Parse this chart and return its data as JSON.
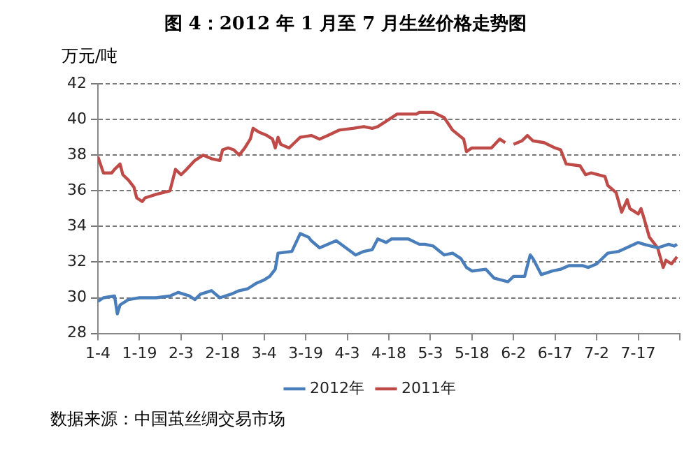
{
  "chart_data": {
    "type": "line",
    "title": "图 4：2012 年 1 月至 7 月生丝价格走势图",
    "ylabel": "万元/吨",
    "annotations": [
      "数据来源：中国茧丝绸交易市场"
    ],
    "xlim": [
      "--01-04",
      "--08-01"
    ],
    "xticks": [
      {
        "value": "--01-04",
        "label": "1-4"
      },
      {
        "value": "--01-19",
        "label": "1-19"
      },
      {
        "value": "--02-03",
        "label": "2-3"
      },
      {
        "value": "--02-18",
        "label": "2-18"
      },
      {
        "value": "--03-04",
        "label": "3-4"
      },
      {
        "value": "--03-19",
        "label": "3-19"
      },
      {
        "value": "--04-03",
        "label": "4-3"
      },
      {
        "value": "--04-18",
        "label": "4-18"
      },
      {
        "value": "--05-03",
        "label": "5-3"
      },
      {
        "value": "--05-18",
        "label": "5-18"
      },
      {
        "value": "--06-02",
        "label": "6-2"
      },
      {
        "value": "--06-17",
        "label": "6-17"
      },
      {
        "value": "--07-02",
        "label": "7-2"
      },
      {
        "value": "--07-17",
        "label": "7-17"
      },
      {
        "value": "--08-01",
        "label": null
      }
    ],
    "ylim": [
      28,
      42
    ],
    "yticks": [
      28,
      30,
      32,
      34,
      36,
      38,
      40,
      42
    ],
    "grid": "y",
    "legend": "bottom",
    "marker": "none",
    "line_style": "solid",
    "series": [
      {
        "name": "2012年",
        "color": "#4a7ebb",
        "x": [
          "--01-04",
          "--01-06",
          "--01-10",
          "--01-11",
          "--01-12",
          "--01-15",
          "--01-19",
          "--01-25",
          "--01-30",
          "--02-02",
          "--02-06",
          "--02-08",
          "--02-10",
          "--02-14",
          "--02-17",
          "--02-21",
          "--02-24",
          "--02-27",
          "--03-01",
          "--03-04",
          "--03-06",
          "--03-08",
          "--03-09",
          "--03-14",
          "--03-17",
          "--03-20",
          "--03-21",
          "--03-24",
          "--03-30",
          "--04-06",
          "--04-09",
          "--04-12",
          "--04-14",
          "--04-17",
          "--04-19",
          "--04-25",
          "--04-29",
          "--05-01",
          "--05-04",
          "--05-08",
          "--05-11",
          "--05-14",
          "--05-16",
          "--05-18",
          "--05-23",
          "--05-26",
          "--05-31",
          "--06-02",
          "--06-06",
          "--06-08",
          "--06-09",
          "--06-12",
          "--06-16",
          "--06-19",
          "--06-22",
          "--06-27",
          "--06-29",
          "--07-02",
          "--07-06",
          "--07-10",
          "--07-17",
          "--07-19",
          "--07-24",
          "--07-28",
          "--07-30",
          "--07-31"
        ],
        "values": [
          29.8,
          30.0,
          30.1,
          29.1,
          29.6,
          29.9,
          30.0,
          30.0,
          30.1,
          30.3,
          30.1,
          29.9,
          30.2,
          30.4,
          30.0,
          30.2,
          30.4,
          30.5,
          30.8,
          31.0,
          31.2,
          31.6,
          32.5,
          32.6,
          33.6,
          33.4,
          33.2,
          32.8,
          33.2,
          32.4,
          32.6,
          32.7,
          33.3,
          33.1,
          33.3,
          33.3,
          33.0,
          33.0,
          32.9,
          32.4,
          32.5,
          32.2,
          31.7,
          31.5,
          31.6,
          31.1,
          30.9,
          31.2,
          31.2,
          32.4,
          32.2,
          31.3,
          31.5,
          31.6,
          31.8,
          31.8,
          31.7,
          31.9,
          32.5,
          32.6,
          33.1,
          33.0,
          32.8,
          33.0,
          32.9,
          33.0
        ]
      },
      {
        "name": "2011年",
        "color": "#be4b48",
        "x": [
          "--01-04",
          "--01-06",
          "--01-09",
          "--01-10",
          "--01-12",
          "--01-13",
          "--01-15",
          "--01-17",
          "--01-18",
          "--01-20",
          "--01-21",
          "--01-25",
          "--01-30",
          "--02-01",
          "--02-03",
          "--02-05",
          "--02-08",
          "--02-11",
          "--02-14",
          "--02-17",
          "--02-18",
          "--02-20",
          "--02-22",
          "--02-24",
          "--02-26",
          "--02-28",
          "--02-29",
          "--03-02",
          "--03-05",
          "--03-07",
          "--03-08",
          "--03-09",
          "--03-10",
          "--03-13",
          "--03-15",
          "--03-17",
          "--03-21",
          "--03-24",
          "--03-27",
          "--03-31",
          "--04-05",
          "--04-09",
          "--04-12",
          "--04-14",
          "--04-18",
          "--04-21",
          "--04-28",
          "--04-29",
          "--05-04",
          "--05-08",
          "--05-11",
          "--05-15",
          "--05-16",
          "--05-18",
          "--05-25",
          "--05-28",
          "--05-30",
          "--05-31",
          "--06-02",
          "--06-05",
          "--06-07",
          "--06-09",
          "--06-13",
          "--06-17",
          "--06-19",
          "--06-21",
          "--06-26",
          "--06-28",
          "--06-30",
          "--07-05",
          "--07-06",
          "--07-09",
          "--07-11",
          "--07-13",
          "--07-14",
          "--07-17",
          "--07-18",
          "--07-19",
          "--07-21",
          "--07-24",
          "--07-26",
          "--07-27",
          "--07-29",
          "--07-30",
          "--07-31"
        ],
        "values": [
          37.9,
          37.0,
          37.0,
          37.2,
          37.5,
          36.9,
          36.6,
          36.2,
          35.6,
          35.4,
          35.6,
          35.8,
          36.0,
          37.2,
          36.9,
          37.2,
          37.7,
          38.0,
          37.8,
          37.7,
          38.3,
          38.4,
          38.3,
          38.0,
          38.4,
          38.9,
          39.5,
          39.3,
          39.1,
          38.9,
          38.4,
          39.0,
          38.6,
          38.4,
          38.7,
          39.0,
          39.1,
          38.9,
          39.1,
          39.4,
          39.5,
          39.6,
          39.5,
          39.6,
          40.0,
          40.3,
          40.3,
          40.4,
          40.4,
          40.1,
          39.4,
          38.9,
          38.2,
          38.4,
          38.4,
          38.9,
          38.7,
          null,
          38.6,
          38.8,
          39.1,
          38.8,
          38.7,
          38.4,
          38.3,
          37.5,
          37.4,
          36.9,
          37.0,
          36.8,
          36.3,
          35.9,
          34.8,
          35.5,
          35.0,
          34.7,
          35.0,
          34.5,
          33.4,
          32.8,
          31.7,
          32.1,
          31.9,
          32.1,
          32.3
        ]
      }
    ]
  }
}
